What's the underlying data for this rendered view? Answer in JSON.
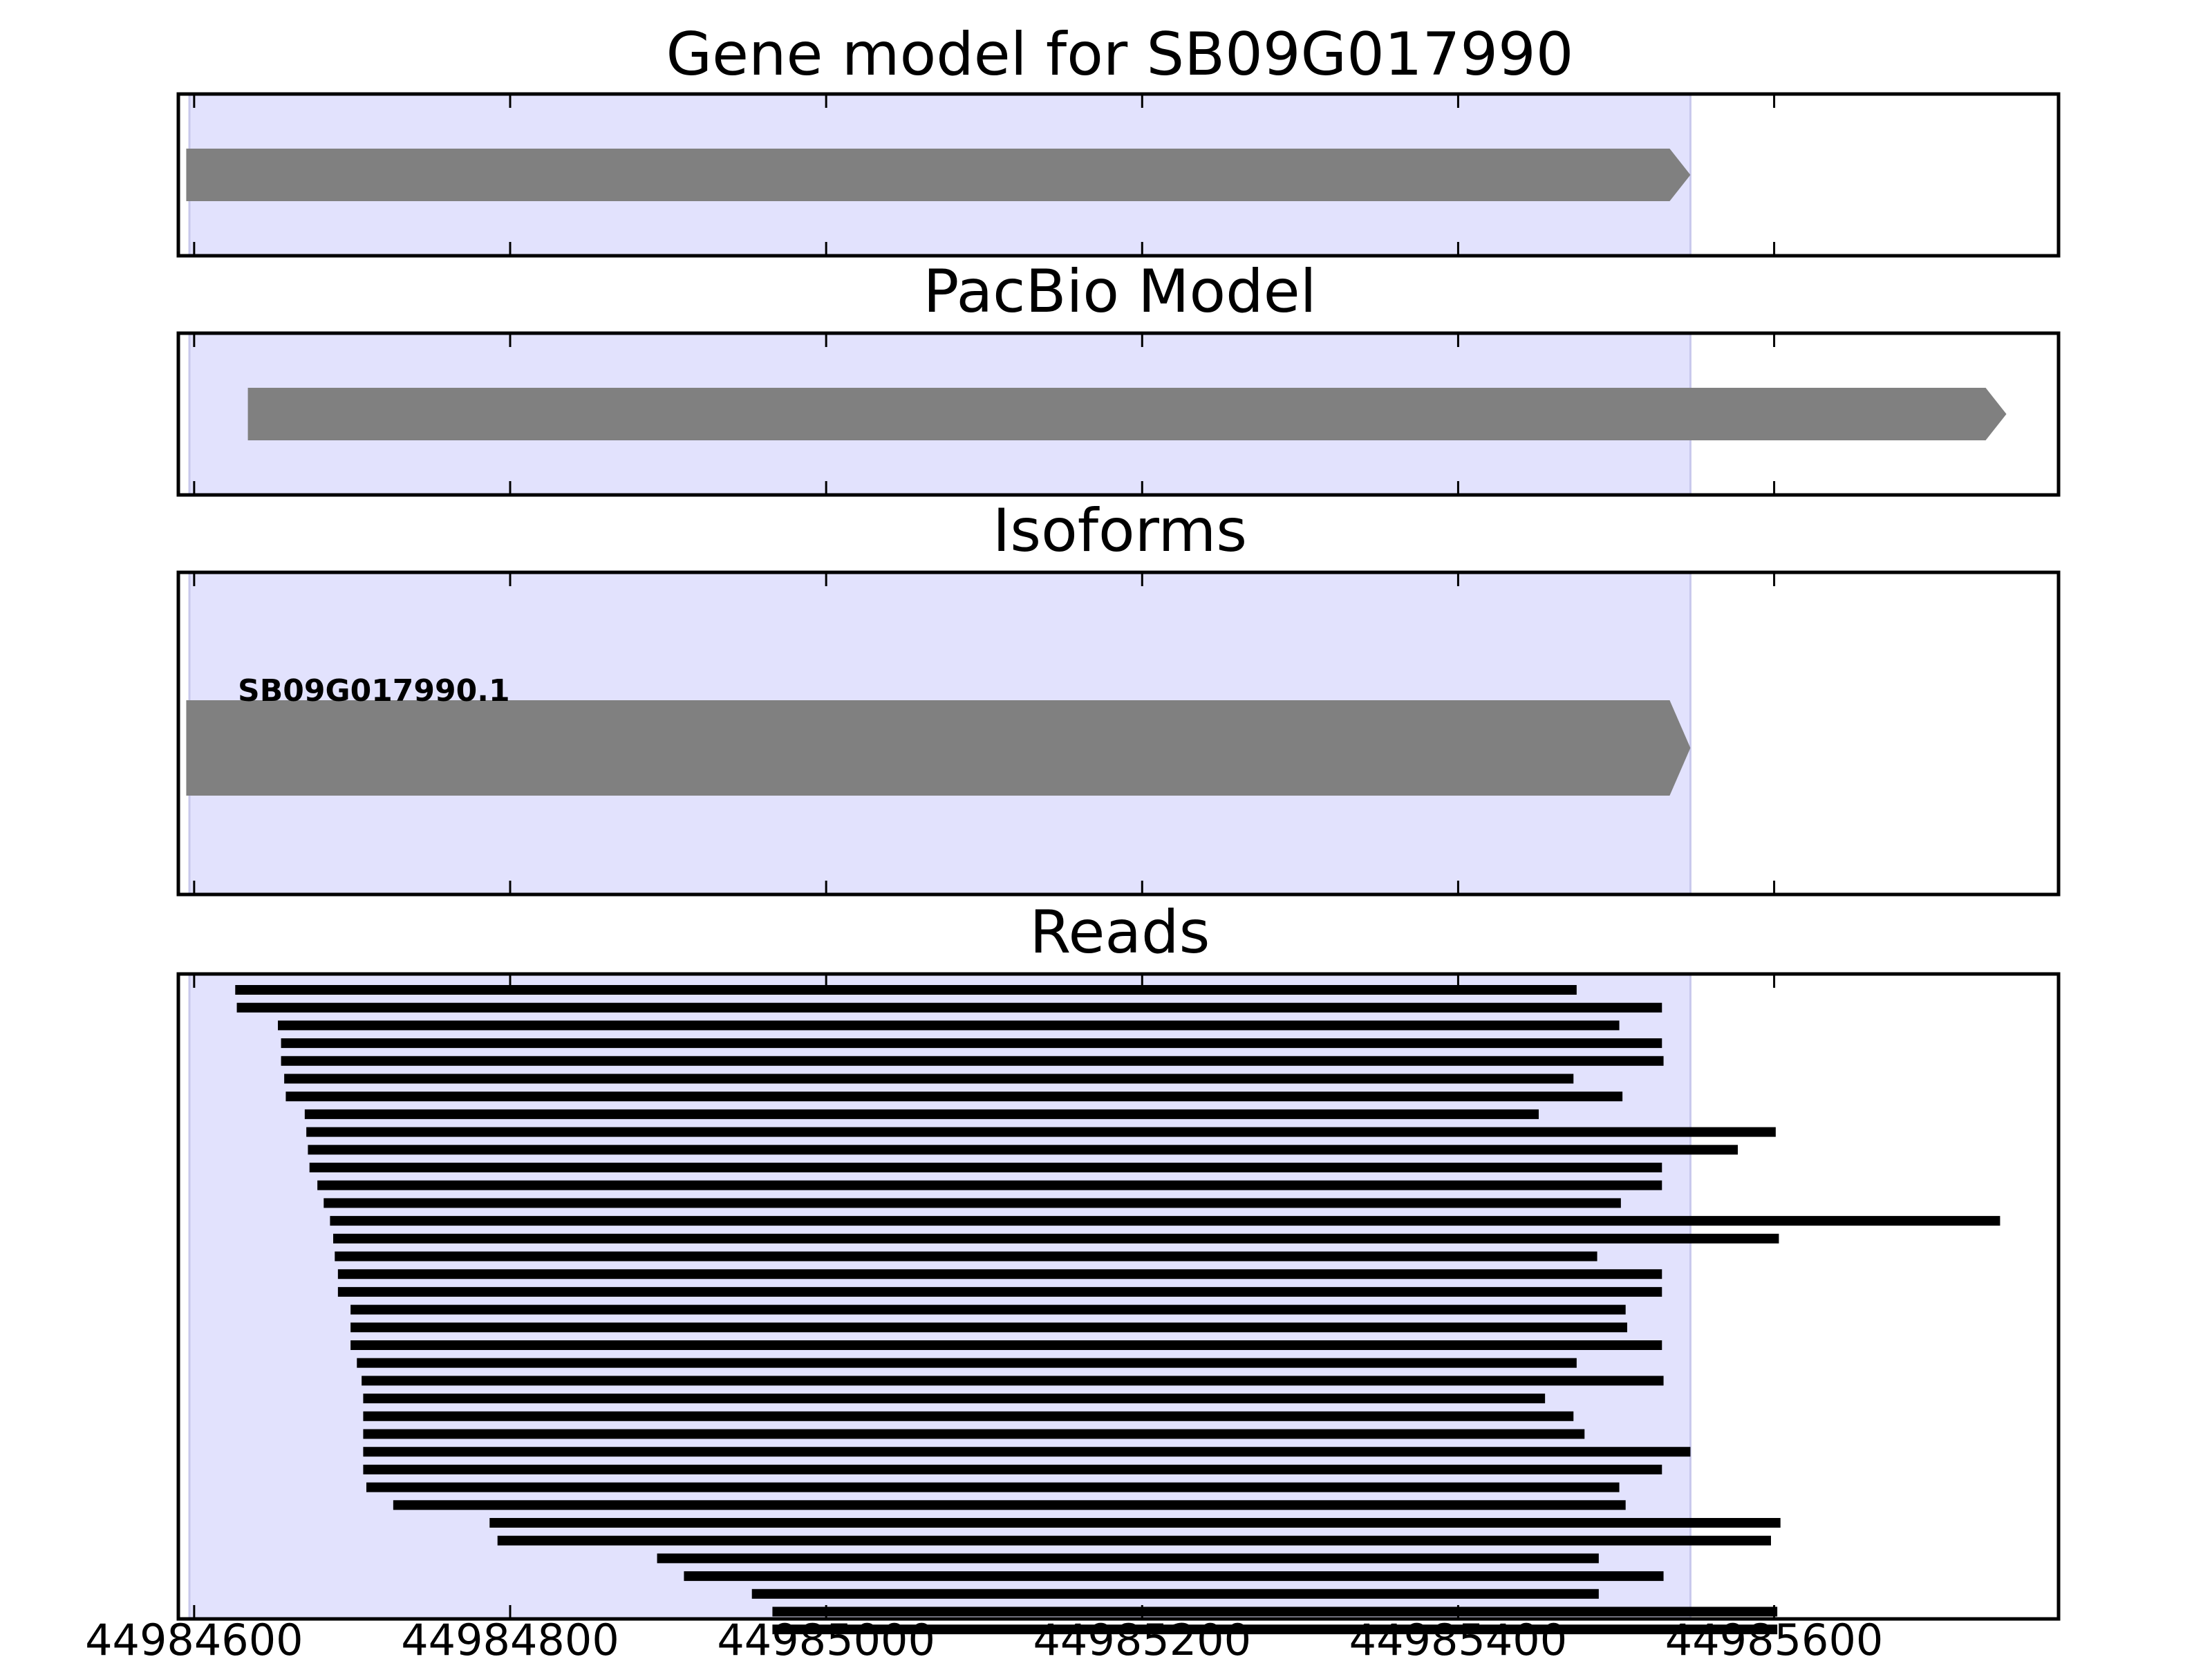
{
  "colors": {
    "highlight": "#e2e2fd",
    "highlight_edge": "#c8c8ec",
    "model_fill": "#808080",
    "read_fill": "#000000",
    "frame": "#000000",
    "background": "#ffffff"
  },
  "chart_data": {
    "type": "gene-track",
    "x_axis": {
      "range": [
        44984590,
        44985780
      ],
      "tick_values": [
        44984600,
        44984800,
        44985000,
        44985200,
        44985400,
        44985600
      ],
      "tick_labels": [
        "44984600",
        "44984800",
        "44985000",
        "44985200",
        "44985400",
        "44985600"
      ]
    },
    "highlight_region": [
      44984597,
      44985547
    ],
    "panels": [
      {
        "key": "gene",
        "title": "Gene model for SB09G017990",
        "features": [
          {
            "start": 44984595,
            "end": 44985547,
            "strand": "+"
          }
        ]
      },
      {
        "key": "pacbio",
        "title": "PacBio Model",
        "features": [
          {
            "start": 44984634,
            "end": 44985747,
            "strand": "+"
          }
        ]
      },
      {
        "key": "isoforms",
        "title": "Isoforms",
        "features": [
          {
            "start": 44984595,
            "end": 44985547,
            "strand": "+",
            "label": "SB09G017990.1"
          }
        ]
      },
      {
        "key": "reads",
        "title": "Reads",
        "reads": [
          [
            44984626,
            44985475
          ],
          [
            44984627,
            44985529
          ],
          [
            44984653,
            44985502
          ],
          [
            44984655,
            44985529
          ],
          [
            44984655,
            44985530
          ],
          [
            44984657,
            44985473
          ],
          [
            44984658,
            44985504
          ],
          [
            44984670,
            44985451
          ],
          [
            44984671,
            44985601
          ],
          [
            44984672,
            44985577
          ],
          [
            44984673,
            44985529
          ],
          [
            44984678,
            44985529
          ],
          [
            44984682,
            44985503
          ],
          [
            44984686,
            44985743
          ],
          [
            44984688,
            44985603
          ],
          [
            44984689,
            44985488
          ],
          [
            44984691,
            44985529
          ],
          [
            44984691,
            44985529
          ],
          [
            44984699,
            44985506
          ],
          [
            44984699,
            44985507
          ],
          [
            44984699,
            44985529
          ],
          [
            44984703,
            44985475
          ],
          [
            44984706,
            44985530
          ],
          [
            44984707,
            44985455
          ],
          [
            44984707,
            44985473
          ],
          [
            44984707,
            44985480
          ],
          [
            44984707,
            44985547
          ],
          [
            44984707,
            44985529
          ],
          [
            44984709,
            44985502
          ],
          [
            44984726,
            44985506
          ],
          [
            44984787,
            44985604
          ],
          [
            44984792,
            44985598
          ],
          [
            44984893,
            44985489
          ],
          [
            44984910,
            44985530
          ],
          [
            44984953,
            44985489
          ],
          [
            44984966,
            44985602
          ],
          [
            44984966,
            44985602
          ]
        ]
      }
    ]
  }
}
